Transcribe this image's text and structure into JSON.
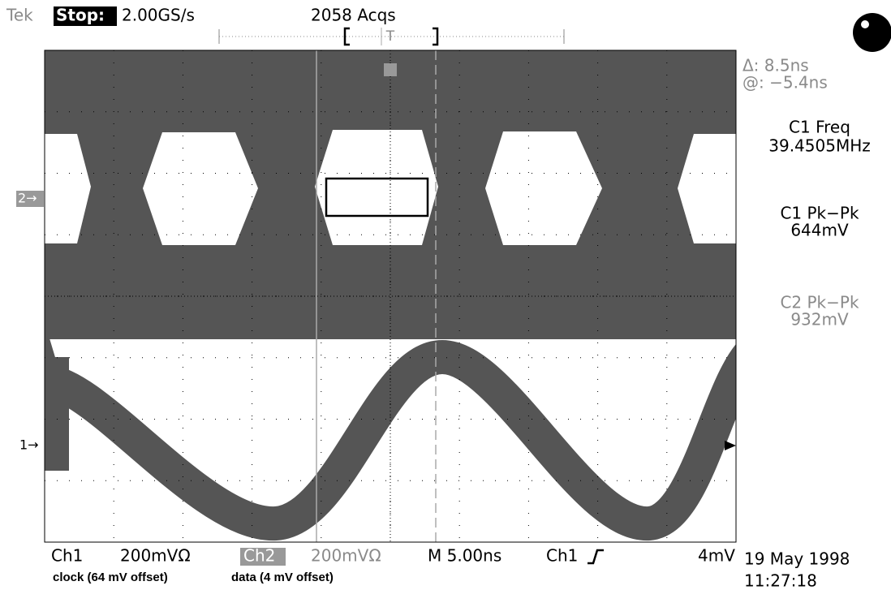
{
  "header": {
    "brand": "Tek",
    "state": "Stop:",
    "sample_rate": "2.00GS/s",
    "acquisitions": "2058 Acqs",
    "trigger_marker": "T"
  },
  "markers": {
    "ch2": "2→",
    "ch1": "1→"
  },
  "readouts": {
    "delta": "Δ: 8.5ns",
    "at": "@: −5.4ns",
    "c1_freq_label": "C1 Freq",
    "c1_freq_value": "39.4505MHz",
    "c1_pkpk_label": "C1 Pk−Pk",
    "c1_pkpk_value": "644mV",
    "c2_pkpk_label": "C2 Pk−Pk",
    "c2_pkpk_value": "932mV"
  },
  "footer": {
    "ch1": "Ch1",
    "ch1_scale": "200mVΩ",
    "ch2": "Ch2",
    "ch2_scale": "200mVΩ",
    "timebase": "M 5.00ns",
    "trigger_source": "Ch1",
    "trigger_level": "4mV",
    "date": "19 May 1998",
    "time": "11:27:18"
  },
  "captions": {
    "clock": "clock (64 mV offset)",
    "data": "data (4 mV offset)"
  }
}
